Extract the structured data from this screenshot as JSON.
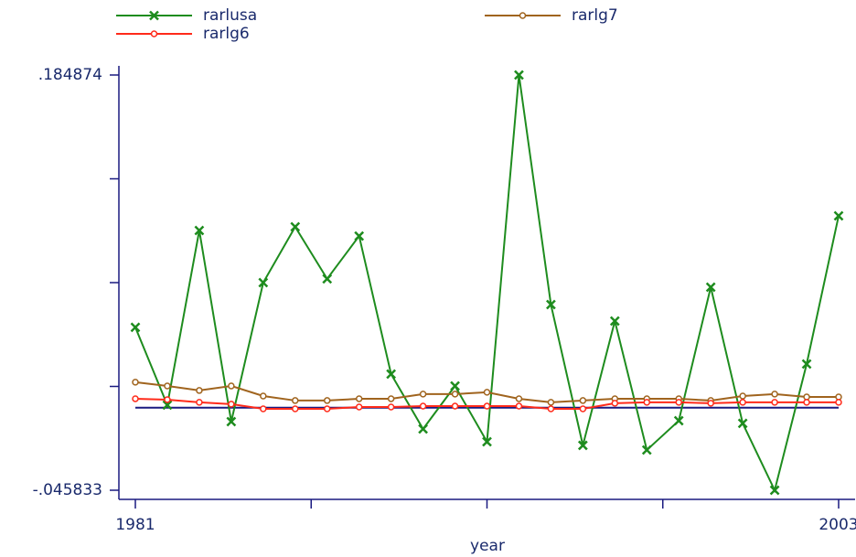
{
  "chart_data": {
    "type": "line",
    "x_label": "year",
    "x": [
      1981,
      1982,
      1983,
      1984,
      1985,
      1986,
      1987,
      1988,
      1989,
      1990,
      1991,
      1992,
      1993,
      1994,
      1995,
      1996,
      1997,
      1998,
      1999,
      2000,
      2001,
      2002,
      2003
    ],
    "series": [
      {
        "name": "rarlusa",
        "color": "#1e8c1e",
        "marker": "x",
        "values": [
          0.0447,
          0.0015,
          0.0985,
          -0.0077,
          0.0695,
          0.1005,
          0.0716,
          0.0954,
          0.0187,
          -0.0118,
          0.0121,
          -0.0189,
          0.184874,
          0.0573,
          -0.0209,
          0.0482,
          -0.0235,
          -0.0072,
          0.067,
          -0.0087,
          -0.045833,
          0.0243,
          0.1066
        ]
      },
      {
        "name": "rarlg7",
        "color": "#a0641e",
        "marker": "circle",
        "values": [
          0.0142,
          0.0121,
          0.0096,
          0.0121,
          0.0065,
          0.004,
          0.004,
          0.005,
          0.005,
          0.0076,
          0.0076,
          0.0086,
          0.005,
          0.003,
          0.004,
          0.005,
          0.005,
          0.005,
          0.004,
          0.0065,
          0.0076,
          0.006,
          0.006
        ]
      },
      {
        "name": "rarlg6",
        "color": "#ff2a1a",
        "marker": "circle",
        "values": [
          0.005,
          0.0045,
          0.003,
          0.002,
          -0.0006,
          -0.0006,
          -0.0006,
          0.0004,
          0.0004,
          0.0009,
          0.0009,
          0.0009,
          0.0009,
          -0.0006,
          -0.0006,
          0.0025,
          0.003,
          0.003,
          0.0025,
          0.003,
          0.003,
          0.003,
          0.003
        ]
      }
    ],
    "xlim": [
      1981,
      2003
    ],
    "xticks": [
      1981,
      2003
    ],
    "xminorticks": [
      1986.5,
      1992,
      1997.5
    ],
    "ylim": [
      -0.045833,
      0.184874
    ],
    "yticks": [
      {
        "value": 0.184874,
        "label": ".184874"
      },
      {
        "value": -0.045833,
        "label": "-.045833"
      }
    ],
    "yminorticks": [
      0.127197,
      0.06952,
      0.011843
    ],
    "yline": 0,
    "yline_color": "#1a1a80",
    "axis_color": "#1a1a80",
    "grid": false
  }
}
